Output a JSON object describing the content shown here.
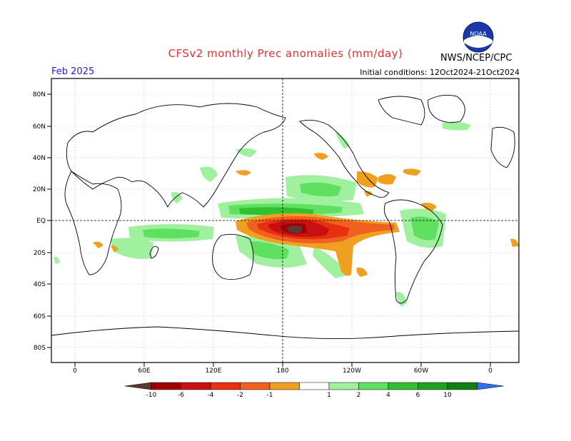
{
  "header": {
    "title": "CFSv2 monthly Prec anomalies (mm/day)",
    "valid_month": "Feb 2025",
    "initial_conditions": "Initial conditions: 12Oct2024-21Oct2024",
    "agency": "NWS/NCEP/CPC",
    "logo_text": "NOAA"
  },
  "axes": {
    "lat_labels": [
      "80N",
      "60N",
      "40N",
      "20N",
      "EQ",
      "20S",
      "40S",
      "60S",
      "80S"
    ],
    "lon_labels": [
      "0",
      "60E",
      "120E",
      "180",
      "120W",
      "60W",
      "0"
    ]
  },
  "colorbar": {
    "labels": [
      "-10",
      "-6",
      "-4",
      "-2",
      "-1",
      "1",
      "2",
      "4",
      "6",
      "10"
    ],
    "colors": [
      "#5a3a32",
      "#a00000",
      "#c81010",
      "#e83010",
      "#f06020",
      "#f0a020",
      "#ffffff",
      "#a0f0a0",
      "#60e060",
      "#30c030",
      "#20a020",
      "#108010",
      "#3070f0"
    ]
  },
  "colors": {
    "title": "#e03030",
    "valid_month": "#2020d0"
  }
}
